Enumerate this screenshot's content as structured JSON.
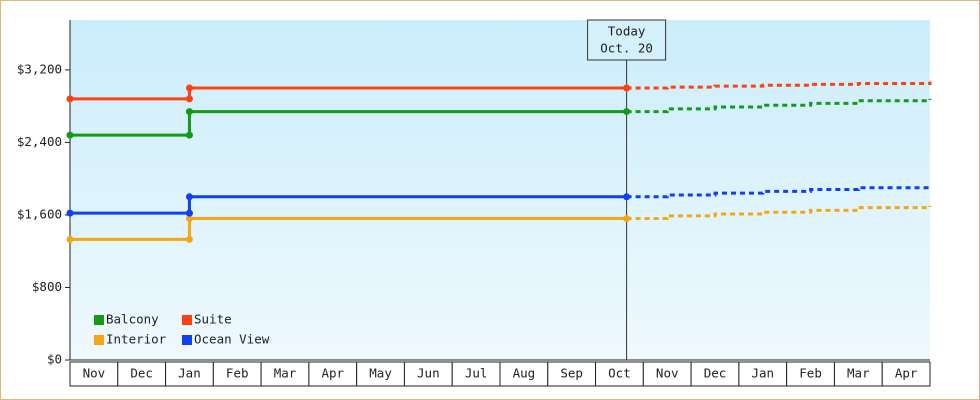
{
  "chart_data": {
    "type": "line",
    "categories": [
      "Nov",
      "Dec",
      "Jan",
      "Feb",
      "Mar",
      "Apr",
      "May",
      "Jun",
      "Jul",
      "Aug",
      "Sep",
      "Oct",
      "Nov",
      "Dec",
      "Jan",
      "Feb",
      "Mar",
      "Apr"
    ],
    "ylim": [
      0,
      3750
    ],
    "yticks": [
      {
        "value": 0,
        "label": "$0"
      },
      {
        "value": 800,
        "label": "$800"
      },
      {
        "value": 1600,
        "label": "$1,600"
      },
      {
        "value": 2400,
        "label": "$2,400"
      },
      {
        "value": 3200,
        "label": "$3,200"
      }
    ],
    "legend": "bottom-left",
    "annotation": {
      "line1": "Today",
      "line2": "Oct. 20"
    },
    "series": [
      {
        "name": "Balcony",
        "color": "#159a15",
        "values": [
          2480,
          2480,
          2740,
          2740,
          2740,
          2740,
          2740,
          2740,
          2740,
          2740,
          2740,
          2740,
          null,
          null,
          null,
          null,
          null,
          null
        ],
        "forecast": [
          null,
          null,
          null,
          null,
          null,
          null,
          null,
          null,
          null,
          null,
          null,
          2740,
          2770,
          2790,
          2810,
          2830,
          2860,
          2880
        ]
      },
      {
        "name": "Suite",
        "color": "#ff4010",
        "values": [
          2880,
          2880,
          3000,
          3000,
          3000,
          3000,
          3000,
          3000,
          3000,
          3000,
          3000,
          3000,
          null,
          null,
          null,
          null,
          null,
          null
        ],
        "forecast": [
          null,
          null,
          null,
          null,
          null,
          null,
          null,
          null,
          null,
          null,
          null,
          3000,
          3010,
          3020,
          3030,
          3040,
          3050,
          3070
        ]
      },
      {
        "name": "Interior",
        "color": "#f5a614",
        "values": [
          1330,
          1330,
          1560,
          1560,
          1560,
          1560,
          1560,
          1560,
          1560,
          1560,
          1560,
          1560,
          null,
          null,
          null,
          null,
          null,
          null
        ],
        "forecast": [
          null,
          null,
          null,
          null,
          null,
          null,
          null,
          null,
          null,
          null,
          null,
          1560,
          1590,
          1610,
          1630,
          1650,
          1680,
          1700
        ]
      },
      {
        "name": "Ocean View",
        "color": "#1040f0",
        "values": [
          1620,
          1620,
          1800,
          1800,
          1800,
          1800,
          1800,
          1800,
          1800,
          1800,
          1800,
          1800,
          null,
          null,
          null,
          null,
          null,
          null
        ],
        "forecast": [
          null,
          null,
          null,
          null,
          null,
          null,
          null,
          null,
          null,
          null,
          null,
          1800,
          1820,
          1840,
          1860,
          1880,
          1900,
          1920
        ]
      }
    ]
  }
}
